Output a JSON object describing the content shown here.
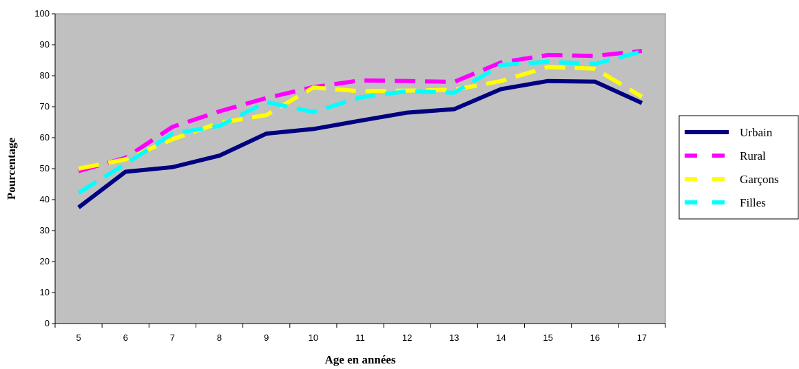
{
  "chart_data": {
    "type": "line",
    "xlabel": "Age en années",
    "ylabel": "Pourcentage",
    "ylim": [
      0,
      100
    ],
    "yticks": [
      0,
      10,
      20,
      30,
      40,
      50,
      60,
      70,
      80,
      90,
      100
    ],
    "categories": [
      "5",
      "6",
      "7",
      "8",
      "9",
      "10",
      "11",
      "12",
      "13",
      "14",
      "15",
      "16",
      "17"
    ],
    "grid": false,
    "legend_position": "right",
    "plot_background": "#c0c0c0",
    "series": [
      {
        "name": "Urbain",
        "color": "#000080",
        "dash": "solid",
        "values": [
          37.5,
          49,
          50.5,
          54.2,
          61.3,
          62.8,
          65.5,
          68.1,
          69.2,
          75.7,
          78.3,
          78.1,
          71.2
        ]
      },
      {
        "name": "Rural",
        "color": "#ff00ff",
        "dash": "dashed",
        "values": [
          49.2,
          53.5,
          63.5,
          68.5,
          72.8,
          76.3,
          78.5,
          78.3,
          78,
          84.3,
          86.7,
          86.4,
          88
        ]
      },
      {
        "name": "Garçons",
        "color": "#ffff00",
        "dash": "dashed",
        "values": [
          50,
          53,
          59.5,
          64.8,
          67.3,
          76.2,
          75,
          75.2,
          75.5,
          78.3,
          82.8,
          82.3,
          73.2
        ]
      },
      {
        "name": "Filles",
        "color": "#00ffff",
        "dash": "dashed",
        "values": [
          42.2,
          51.5,
          61.3,
          63.8,
          71.5,
          68.3,
          73,
          75,
          74.5,
          83.5,
          84.5,
          83.8,
          87.8
        ]
      }
    ]
  }
}
